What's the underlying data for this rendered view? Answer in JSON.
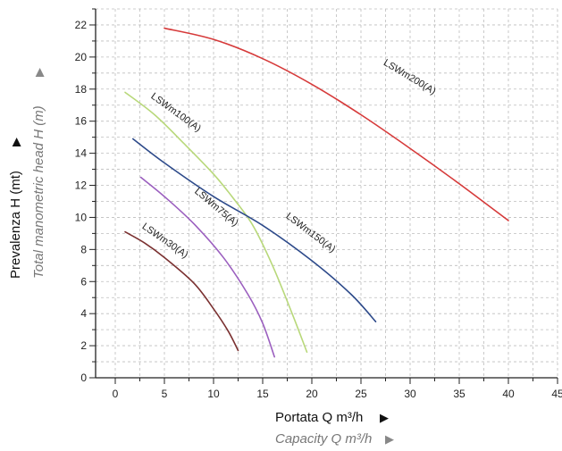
{
  "chart_data": {
    "type": "line",
    "xlabel": "Portata Q m³/h",
    "xlabel_secondary": "Capacity Q m³/h",
    "ylabel": "Prevalenza H (mt)",
    "ylabel_secondary": "Total manometric head H (m)",
    "xlim": [
      -2,
      45
    ],
    "ylim": [
      0,
      23
    ],
    "x_ticks": [
      0,
      5,
      10,
      15,
      20,
      25,
      30,
      35,
      40,
      45
    ],
    "y_ticks": [
      0,
      2,
      4,
      6,
      8,
      10,
      12,
      14,
      16,
      18,
      20,
      22
    ],
    "grid": true,
    "series": [
      {
        "name": "LSWm200(A)",
        "color": "#d63a3a",
        "x": [
          5,
          10,
          15,
          20,
          25,
          30,
          35,
          40
        ],
        "y": [
          21.8,
          21.1,
          19.9,
          18.3,
          16.4,
          14.3,
          12.1,
          9.8
        ]
      },
      {
        "name": "LSWm100(A)",
        "color": "#b8d87a",
        "x": [
          1,
          4,
          7,
          10,
          12,
          14,
          16,
          18,
          19.5
        ],
        "y": [
          17.8,
          16.4,
          14.6,
          12.7,
          11.2,
          9.5,
          7.0,
          4.0,
          1.6
        ]
      },
      {
        "name": "LSWm150(A)",
        "color": "#2d4a8a",
        "x": [
          1.8,
          5,
          10,
          15,
          20,
          24,
          26.5
        ],
        "y": [
          14.9,
          13.4,
          11.3,
          9.5,
          7.3,
          5.2,
          3.5
        ]
      },
      {
        "name": "LSWm75(A)",
        "color": "#9b5fbf",
        "x": [
          2.6,
          5,
          8,
          11,
          13.5,
          15,
          16.2
        ],
        "y": [
          12.5,
          11.3,
          9.6,
          7.5,
          5.2,
          3.4,
          1.3
        ]
      },
      {
        "name": "LSWm30(A)",
        "color": "#7a3030",
        "x": [
          1,
          3,
          5,
          8,
          10,
          11.5,
          12.5
        ],
        "y": [
          9.1,
          8.4,
          7.5,
          5.9,
          4.3,
          2.9,
          1.7
        ]
      }
    ]
  }
}
